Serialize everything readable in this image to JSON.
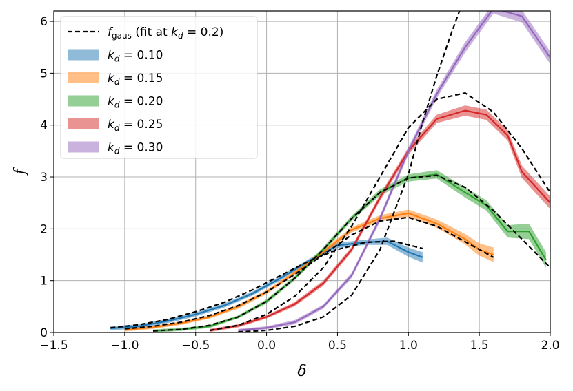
{
  "chart_data": {
    "type": "line",
    "xlabel": "δ",
    "ylabel": "f",
    "xlim": [
      -1.5,
      2.0
    ],
    "ylim": [
      0,
      6.2
    ],
    "xticks": [
      -1.5,
      -1.0,
      -0.5,
      0.0,
      0.5,
      1.0,
      1.5,
      2.0
    ],
    "xtick_labels": [
      "−1.5",
      "−1.0",
      "−0.5",
      "0.0",
      "0.5",
      "1.0",
      "1.5",
      "2.0"
    ],
    "yticks": [
      0,
      1,
      2,
      3,
      4,
      5,
      6
    ],
    "ytick_labels": [
      "0",
      "1",
      "2",
      "3",
      "4",
      "5",
      "6"
    ],
    "grid": true,
    "legend_position": "top-left",
    "legend_entries": [
      {
        "sub": "gaus",
        "label": " (fit at ",
        "suffix": "= 0.2)",
        "style": "dashed",
        "color": "#000000"
      },
      {
        "prefix": "= ",
        "value": "0.10",
        "color": "#1f77b4"
      },
      {
        "prefix": "= ",
        "value": "0.15",
        "color": "#ff7f0e"
      },
      {
        "prefix": "= ",
        "value": "0.20",
        "color": "#2ca02c"
      },
      {
        "prefix": "= ",
        "value": "0.25",
        "color": "#d62728"
      },
      {
        "prefix": "= ",
        "value": "0.30",
        "color": "#9467bd"
      }
    ],
    "series": [
      {
        "kd": "0.10",
        "color": "#1f77b4",
        "x": [
          -1.1,
          -0.9,
          -0.7,
          -0.5,
          -0.3,
          -0.1,
          0.1,
          0.3,
          0.5,
          0.7,
          0.85,
          1.0,
          1.1
        ],
        "y": [
          0.08,
          0.12,
          0.22,
          0.35,
          0.52,
          0.75,
          1.05,
          1.38,
          1.68,
          1.74,
          1.76,
          1.55,
          1.45
        ],
        "band": [
          0.04,
          0.04,
          0.04,
          0.04,
          0.04,
          0.04,
          0.04,
          0.04,
          0.05,
          0.05,
          0.07,
          0.09,
          0.1
        ]
      },
      {
        "kd": "0.15",
        "color": "#ff7f0e",
        "x": [
          -1.0,
          -0.8,
          -0.6,
          -0.4,
          -0.2,
          0.0,
          0.2,
          0.4,
          0.6,
          0.8,
          1.0,
          1.2,
          1.4,
          1.5,
          1.6
        ],
        "y": [
          0.05,
          0.1,
          0.18,
          0.3,
          0.5,
          0.78,
          1.15,
          1.55,
          1.98,
          2.2,
          2.3,
          2.1,
          1.8,
          1.6,
          1.5
        ],
        "band": [
          0.03,
          0.03,
          0.03,
          0.03,
          0.04,
          0.04,
          0.04,
          0.05,
          0.05,
          0.06,
          0.07,
          0.08,
          0.1,
          0.12,
          0.14
        ]
      },
      {
        "kd": "0.20",
        "color": "#2ca02c",
        "x": [
          -0.8,
          -0.6,
          -0.4,
          -0.2,
          0.0,
          0.2,
          0.4,
          0.6,
          0.8,
          1.0,
          1.2,
          1.4,
          1.55,
          1.7,
          1.85,
          1.97
        ],
        "y": [
          0.03,
          0.06,
          0.12,
          0.3,
          0.6,
          1.05,
          1.6,
          2.2,
          2.7,
          2.98,
          3.05,
          2.7,
          2.45,
          1.95,
          1.95,
          1.4
        ],
        "band": [
          0.03,
          0.03,
          0.03,
          0.03,
          0.04,
          0.04,
          0.05,
          0.05,
          0.06,
          0.07,
          0.08,
          0.1,
          0.1,
          0.12,
          0.15,
          0.15
        ]
      },
      {
        "kd": "0.25",
        "color": "#d62728",
        "x": [
          -0.4,
          -0.2,
          0.0,
          0.2,
          0.4,
          0.6,
          0.8,
          1.0,
          1.2,
          1.4,
          1.55,
          1.7,
          1.8,
          2.0
        ],
        "y": [
          0.04,
          0.13,
          0.3,
          0.55,
          0.95,
          1.6,
          2.6,
          3.5,
          4.12,
          4.28,
          4.2,
          3.8,
          3.1,
          2.5
        ],
        "band": [
          0.03,
          0.03,
          0.03,
          0.04,
          0.05,
          0.05,
          0.06,
          0.07,
          0.08,
          0.1,
          0.1,
          0.1,
          0.12,
          0.12
        ]
      },
      {
        "kd": "0.30",
        "color": "#9467bd",
        "x": [
          -0.2,
          0.0,
          0.2,
          0.4,
          0.6,
          0.8,
          1.0,
          1.2,
          1.4,
          1.6,
          1.8,
          2.0
        ],
        "y": [
          0.04,
          0.09,
          0.2,
          0.5,
          1.1,
          2.2,
          3.5,
          4.6,
          5.5,
          6.25,
          6.1,
          5.3
        ],
        "band": [
          0.03,
          0.03,
          0.04,
          0.04,
          0.05,
          0.06,
          0.07,
          0.08,
          0.1,
          0.1,
          0.12,
          0.12
        ]
      }
    ],
    "fits": [
      {
        "kd": "0.10",
        "x": [
          -1.1,
          -0.9,
          -0.7,
          -0.5,
          -0.3,
          -0.1,
          0.1,
          0.3,
          0.5,
          0.7,
          0.9,
          1.1
        ],
        "y": [
          0.09,
          0.15,
          0.25,
          0.4,
          0.58,
          0.82,
          1.1,
          1.38,
          1.6,
          1.74,
          1.76,
          1.62
        ]
      },
      {
        "kd": "0.15",
        "x": [
          -1.0,
          -0.8,
          -0.6,
          -0.4,
          -0.2,
          0.0,
          0.2,
          0.4,
          0.6,
          0.8,
          1.0,
          1.2,
          1.4,
          1.6
        ],
        "y": [
          0.07,
          0.12,
          0.2,
          0.33,
          0.52,
          0.78,
          1.12,
          1.5,
          1.88,
          2.15,
          2.22,
          2.05,
          1.75,
          1.45
        ]
      },
      {
        "kd": "0.20",
        "x": [
          -0.8,
          -0.6,
          -0.4,
          -0.2,
          0.0,
          0.2,
          0.4,
          0.6,
          0.8,
          1.0,
          1.2,
          1.4,
          1.6,
          1.8,
          2.0
        ],
        "y": [
          0.03,
          0.06,
          0.14,
          0.3,
          0.6,
          1.05,
          1.6,
          2.2,
          2.7,
          2.98,
          3.03,
          2.8,
          2.35,
          1.8,
          1.25
        ]
      },
      {
        "kd": "0.25",
        "x": [
          -0.4,
          -0.2,
          0.0,
          0.2,
          0.4,
          0.6,
          0.8,
          1.0,
          1.2,
          1.4,
          1.6,
          1.8,
          2.0
        ],
        "y": [
          0.04,
          0.14,
          0.35,
          0.7,
          1.25,
          2.05,
          3.0,
          3.95,
          4.5,
          4.62,
          4.25,
          3.55,
          2.7
        ]
      },
      {
        "kd": "0.30",
        "x": [
          -0.2,
          0.0,
          0.2,
          0.4,
          0.6,
          0.8,
          1.0,
          1.1,
          1.2,
          1.3,
          1.36
        ],
        "y": [
          0.01,
          0.04,
          0.12,
          0.3,
          0.72,
          1.6,
          3.05,
          4.05,
          4.95,
          5.75,
          6.2
        ]
      }
    ]
  }
}
